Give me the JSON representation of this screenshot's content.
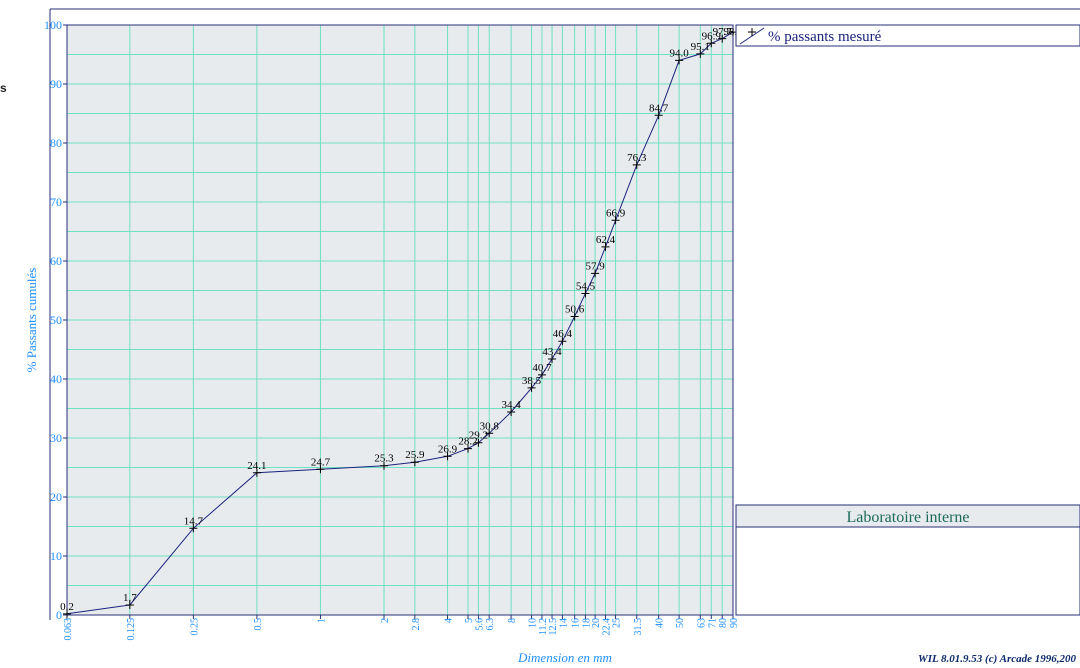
{
  "side_label": "s",
  "legend": {
    "series_label": "% passants mesuré"
  },
  "lab_box": {
    "title": "Laboratoire interne"
  },
  "credit": "WIL 8.01.9.53 (c) Arcade 1996,200",
  "colors": {
    "plot_bg": "#e8ebee",
    "grid": "#6fe0c2",
    "frame": "#2a2f7a",
    "series": "#1a237e",
    "ticks": "#1e90ff",
    "lab_header_bg": "#e8ebee"
  },
  "chart_data": {
    "type": "line",
    "xscale": "log",
    "title": "",
    "xlabel": "Dimension en mm",
    "ylabel": "% Passants cumulés",
    "ylim": [
      0,
      100
    ],
    "xlim": [
      0.063,
      90
    ],
    "grid": true,
    "legend_position": "right",
    "yticks": [
      "0",
      "10",
      "20",
      "30",
      "40",
      "50",
      "60",
      "70",
      "80",
      "90",
      "100"
    ],
    "xticks": [
      "0.063",
      "0.125",
      "0.25",
      "0.5",
      "1",
      "2",
      "2.8",
      "4",
      "5",
      "5.6",
      "6.3",
      "8",
      "10",
      "11.2",
      "12.5",
      "14",
      "16",
      "18",
      "20",
      "22.4",
      "25",
      "31.5",
      "40",
      "50",
      "63",
      "71",
      "80",
      "90"
    ],
    "series": [
      {
        "name": "% passants mesuré",
        "x": [
          0.063,
          0.125,
          0.25,
          0.5,
          1,
          2,
          2.8,
          4,
          5,
          5.6,
          6.3,
          8,
          10,
          11.2,
          12.5,
          14,
          16,
          18,
          20,
          22.4,
          25,
          31.5,
          40,
          50,
          63,
          71,
          80,
          90
        ],
        "y": [
          0.2,
          1.7,
          14.7,
          24.1,
          24.7,
          25.3,
          25.9,
          26.9,
          28.2,
          29.2,
          30.8,
          34.4,
          38.5,
          40.7,
          43.4,
          46.4,
          50.6,
          54.5,
          57.9,
          62.4,
          66.9,
          76.3,
          84.7,
          94.0,
          95.1,
          96.9,
          97.7,
          98.8
        ],
        "labels": [
          "0.2",
          "1.7",
          "14.7",
          "24.1",
          "24.7",
          "25.3",
          "25.9",
          "26.9",
          "28.2",
          "29.2",
          "30.8",
          "34.4",
          "38.5",
          "40.7",
          "43.4",
          "46.4",
          "50.6",
          "54.5",
          "57.9",
          "62.4",
          "66.9",
          "76.3",
          "84.7",
          "94.0",
          "95.1",
          "96.9",
          "97.7",
          "98.8"
        ]
      }
    ]
  }
}
